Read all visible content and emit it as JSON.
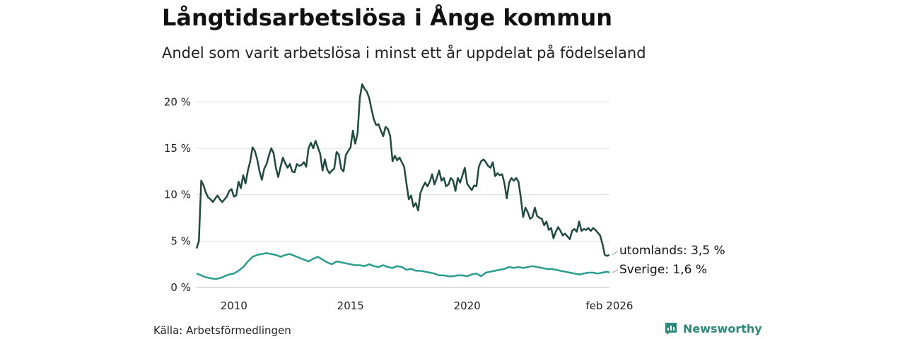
{
  "title": "Långtidsarbetslösa i Ånge kommun",
  "subtitle": "Andel som varit arbetslösa i minst ett år uppdelat på födelseland",
  "source": "Källa: Arbetsförmedlingen",
  "brand": {
    "name": "Newsworthy",
    "icon": "newsworthy-logo-icon"
  },
  "colors": {
    "utomlands": "#1f4a3d",
    "sverige": "#2a9d8f",
    "grid": "#dddddd",
    "brand": "#2d8a79"
  },
  "chart_data": {
    "type": "line",
    "title": "Långtidsarbetslösa i Ånge kommun",
    "xlabel": "",
    "ylabel": "",
    "xlim": [
      2008.4,
      2026.1
    ],
    "ylim": [
      0,
      22
    ],
    "y_ticks": [
      0,
      5,
      10,
      15,
      20
    ],
    "y_tick_labels": [
      "0 %",
      "5 %",
      "10 %",
      "15 %",
      "20 %"
    ],
    "x_ticks": [
      2010,
      2015,
      2020,
      2026.1
    ],
    "x_tick_labels": [
      "2010",
      "2015",
      "2020",
      "feb 2026"
    ],
    "grid": true,
    "legend": "end-of-line labels",
    "series": [
      {
        "name": "utomlands",
        "end_label": "utomlands: 3,5 %",
        "points": [
          [
            2008.4,
            4.2
          ],
          [
            2008.5,
            5.0
          ],
          [
            2008.6,
            11.5
          ],
          [
            2008.7,
            11.0
          ],
          [
            2008.8,
            10.2
          ],
          [
            2008.9,
            9.7
          ],
          [
            2009.0,
            9.5
          ],
          [
            2009.1,
            9.2
          ],
          [
            2009.2,
            9.6
          ],
          [
            2009.3,
            9.9
          ],
          [
            2009.4,
            9.5
          ],
          [
            2009.5,
            9.2
          ],
          [
            2009.6,
            9.5
          ],
          [
            2009.7,
            9.8
          ],
          [
            2009.8,
            10.4
          ],
          [
            2009.9,
            10.6
          ],
          [
            2010.0,
            9.8
          ],
          [
            2010.1,
            9.9
          ],
          [
            2010.2,
            11.4
          ],
          [
            2010.3,
            10.7
          ],
          [
            2010.4,
            12.1
          ],
          [
            2010.5,
            11.2
          ],
          [
            2010.6,
            12.6
          ],
          [
            2010.7,
            13.6
          ],
          [
            2010.8,
            15.1
          ],
          [
            2010.9,
            14.7
          ],
          [
            2011.0,
            13.8
          ],
          [
            2011.1,
            12.5
          ],
          [
            2011.2,
            11.6
          ],
          [
            2011.3,
            12.8
          ],
          [
            2011.4,
            13.3
          ],
          [
            2011.5,
            14.2
          ],
          [
            2011.6,
            15.0
          ],
          [
            2011.7,
            14.5
          ],
          [
            2011.8,
            12.9
          ],
          [
            2011.9,
            11.9
          ],
          [
            2012.0,
            13.0
          ],
          [
            2012.1,
            14.0
          ],
          [
            2012.2,
            13.4
          ],
          [
            2012.3,
            12.9
          ],
          [
            2012.4,
            13.3
          ],
          [
            2012.5,
            12.5
          ],
          [
            2012.6,
            12.4
          ],
          [
            2012.7,
            13.3
          ],
          [
            2012.8,
            13.1
          ],
          [
            2012.9,
            13.2
          ],
          [
            2013.0,
            13.5
          ],
          [
            2013.1,
            13.0
          ],
          [
            2013.2,
            15.0
          ],
          [
            2013.3,
            15.6
          ],
          [
            2013.4,
            15.0
          ],
          [
            2013.5,
            15.8
          ],
          [
            2013.6,
            15.1
          ],
          [
            2013.7,
            14.4
          ],
          [
            2013.8,
            12.6
          ],
          [
            2013.9,
            13.8
          ],
          [
            2014.0,
            12.7
          ],
          [
            2014.1,
            12.3
          ],
          [
            2014.2,
            12.6
          ],
          [
            2014.3,
            12.8
          ],
          [
            2014.4,
            14.6
          ],
          [
            2014.5,
            14.3
          ],
          [
            2014.6,
            12.8
          ],
          [
            2014.7,
            12.5
          ],
          [
            2014.8,
            14.3
          ],
          [
            2014.9,
            14.7
          ],
          [
            2015.0,
            15.1
          ],
          [
            2015.1,
            16.9
          ],
          [
            2015.2,
            15.5
          ],
          [
            2015.3,
            16.6
          ],
          [
            2015.4,
            20.5
          ],
          [
            2015.5,
            21.9
          ],
          [
            2015.6,
            21.4
          ],
          [
            2015.7,
            21.1
          ],
          [
            2015.8,
            20.4
          ],
          [
            2015.9,
            19.2
          ],
          [
            2016.0,
            18.1
          ],
          [
            2016.1,
            17.5
          ],
          [
            2016.2,
            17.6
          ],
          [
            2016.3,
            16.9
          ],
          [
            2016.4,
            16.3
          ],
          [
            2016.5,
            17.3
          ],
          [
            2016.6,
            17.1
          ],
          [
            2016.7,
            16.3
          ],
          [
            2016.8,
            13.6
          ],
          [
            2016.9,
            14.2
          ],
          [
            2017.0,
            13.7
          ],
          [
            2017.1,
            14.0
          ],
          [
            2017.2,
            13.5
          ],
          [
            2017.3,
            13.0
          ],
          [
            2017.4,
            11.2
          ],
          [
            2017.5,
            9.5
          ],
          [
            2017.6,
            9.9
          ],
          [
            2017.7,
            8.7
          ],
          [
            2017.8,
            9.1
          ],
          [
            2017.9,
            8.3
          ],
          [
            2018.0,
            10.2
          ],
          [
            2018.1,
            10.8
          ],
          [
            2018.2,
            11.3
          ],
          [
            2018.3,
            10.9
          ],
          [
            2018.4,
            11.4
          ],
          [
            2018.5,
            12.2
          ],
          [
            2018.6,
            11.1
          ],
          [
            2018.7,
            11.8
          ],
          [
            2018.8,
            12.6
          ],
          [
            2018.9,
            11.5
          ],
          [
            2019.0,
            11.8
          ],
          [
            2019.1,
            10.9
          ],
          [
            2019.2,
            11.1
          ],
          [
            2019.3,
            11.8
          ],
          [
            2019.4,
            11.5
          ],
          [
            2019.5,
            10.4
          ],
          [
            2019.6,
            11.8
          ],
          [
            2019.7,
            11.3
          ],
          [
            2019.8,
            12.1
          ],
          [
            2019.9,
            12.9
          ],
          [
            2020.0,
            11.2
          ],
          [
            2020.1,
            10.8
          ],
          [
            2020.2,
            10.5
          ],
          [
            2020.3,
            11.0
          ],
          [
            2020.4,
            10.9
          ],
          [
            2020.5,
            13.0
          ],
          [
            2020.6,
            13.6
          ],
          [
            2020.7,
            13.8
          ],
          [
            2020.8,
            13.5
          ],
          [
            2020.9,
            13.1
          ],
          [
            2021.0,
            12.9
          ],
          [
            2021.1,
            13.5
          ],
          [
            2021.2,
            12.0
          ],
          [
            2021.3,
            12.3
          ],
          [
            2021.4,
            12.1
          ],
          [
            2021.5,
            12.2
          ],
          [
            2021.6,
            11.2
          ],
          [
            2021.7,
            9.6
          ],
          [
            2021.8,
            11.3
          ],
          [
            2021.9,
            11.8
          ],
          [
            2022.0,
            11.5
          ],
          [
            2022.1,
            11.8
          ],
          [
            2022.2,
            11.4
          ],
          [
            2022.3,
            9.7
          ],
          [
            2022.4,
            7.6
          ],
          [
            2022.5,
            8.6
          ],
          [
            2022.6,
            8.1
          ],
          [
            2022.7,
            7.4
          ],
          [
            2022.8,
            7.6
          ],
          [
            2022.9,
            8.6
          ],
          [
            2023.0,
            7.7
          ],
          [
            2023.1,
            7.5
          ],
          [
            2023.2,
            7.4
          ],
          [
            2023.3,
            6.7
          ],
          [
            2023.4,
            7.1
          ],
          [
            2023.5,
            6.2
          ],
          [
            2023.6,
            6.4
          ],
          [
            2023.7,
            5.3
          ],
          [
            2023.8,
            6.0
          ],
          [
            2023.9,
            6.5
          ],
          [
            2024.0,
            6.1
          ],
          [
            2024.1,
            5.6
          ],
          [
            2024.2,
            5.8
          ],
          [
            2024.3,
            5.5
          ],
          [
            2024.4,
            5.2
          ],
          [
            2024.5,
            6.1
          ],
          [
            2024.6,
            6.3
          ],
          [
            2024.7,
            6.0
          ],
          [
            2024.8,
            7.1
          ],
          [
            2024.9,
            6.1
          ],
          [
            2025.0,
            6.3
          ],
          [
            2025.1,
            6.2
          ],
          [
            2025.2,
            6.4
          ],
          [
            2025.3,
            6.1
          ],
          [
            2025.4,
            6.4
          ],
          [
            2025.5,
            6.2
          ],
          [
            2025.6,
            5.9
          ],
          [
            2025.7,
            5.6
          ],
          [
            2025.8,
            4.7
          ],
          [
            2025.9,
            3.5
          ],
          [
            2026.0,
            3.4
          ],
          [
            2026.1,
            3.5
          ]
        ]
      },
      {
        "name": "Sverige",
        "end_label": "Sverige: 1,6 %",
        "points": [
          [
            2008.4,
            1.5
          ],
          [
            2008.6,
            1.3
          ],
          [
            2008.8,
            1.1
          ],
          [
            2009.0,
            1.0
          ],
          [
            2009.2,
            0.9
          ],
          [
            2009.4,
            1.0
          ],
          [
            2009.6,
            1.2
          ],
          [
            2009.8,
            1.4
          ],
          [
            2010.0,
            1.5
          ],
          [
            2010.2,
            1.8
          ],
          [
            2010.4,
            2.2
          ],
          [
            2010.6,
            2.8
          ],
          [
            2010.8,
            3.3
          ],
          [
            2011.0,
            3.5
          ],
          [
            2011.2,
            3.6
          ],
          [
            2011.4,
            3.7
          ],
          [
            2011.6,
            3.6
          ],
          [
            2011.8,
            3.5
          ],
          [
            2012.0,
            3.3
          ],
          [
            2012.2,
            3.5
          ],
          [
            2012.4,
            3.6
          ],
          [
            2012.6,
            3.4
          ],
          [
            2012.8,
            3.2
          ],
          [
            2013.0,
            3.0
          ],
          [
            2013.2,
            2.8
          ],
          [
            2013.4,
            3.1
          ],
          [
            2013.6,
            3.3
          ],
          [
            2013.8,
            3.0
          ],
          [
            2014.0,
            2.7
          ],
          [
            2014.2,
            2.5
          ],
          [
            2014.4,
            2.8
          ],
          [
            2014.6,
            2.7
          ],
          [
            2014.8,
            2.6
          ],
          [
            2015.0,
            2.5
          ],
          [
            2015.2,
            2.4
          ],
          [
            2015.4,
            2.4
          ],
          [
            2015.6,
            2.3
          ],
          [
            2015.8,
            2.5
          ],
          [
            2016.0,
            2.3
          ],
          [
            2016.2,
            2.2
          ],
          [
            2016.4,
            2.4
          ],
          [
            2016.6,
            2.2
          ],
          [
            2016.8,
            2.1
          ],
          [
            2017.0,
            2.3
          ],
          [
            2017.2,
            2.2
          ],
          [
            2017.4,
            1.9
          ],
          [
            2017.6,
            2.0
          ],
          [
            2017.8,
            1.8
          ],
          [
            2018.0,
            1.8
          ],
          [
            2018.2,
            1.7
          ],
          [
            2018.4,
            1.6
          ],
          [
            2018.6,
            1.5
          ],
          [
            2018.8,
            1.3
          ],
          [
            2019.0,
            1.3
          ],
          [
            2019.2,
            1.2
          ],
          [
            2019.4,
            1.2
          ],
          [
            2019.6,
            1.3
          ],
          [
            2019.8,
            1.3
          ],
          [
            2020.0,
            1.2
          ],
          [
            2020.2,
            1.4
          ],
          [
            2020.4,
            1.5
          ],
          [
            2020.6,
            1.2
          ],
          [
            2020.8,
            1.6
          ],
          [
            2021.0,
            1.7
          ],
          [
            2021.2,
            1.8
          ],
          [
            2021.4,
            1.9
          ],
          [
            2021.6,
            2.0
          ],
          [
            2021.8,
            2.2
          ],
          [
            2022.0,
            2.1
          ],
          [
            2022.2,
            2.2
          ],
          [
            2022.4,
            2.1
          ],
          [
            2022.6,
            2.2
          ],
          [
            2022.8,
            2.3
          ],
          [
            2023.0,
            2.2
          ],
          [
            2023.2,
            2.1
          ],
          [
            2023.4,
            2.0
          ],
          [
            2023.6,
            2.0
          ],
          [
            2023.8,
            1.9
          ],
          [
            2024.0,
            1.8
          ],
          [
            2024.2,
            1.7
          ],
          [
            2024.4,
            1.6
          ],
          [
            2024.6,
            1.5
          ],
          [
            2024.8,
            1.4
          ],
          [
            2025.0,
            1.5
          ],
          [
            2025.2,
            1.6
          ],
          [
            2025.4,
            1.6
          ],
          [
            2025.6,
            1.5
          ],
          [
            2025.8,
            1.6
          ],
          [
            2026.0,
            1.7
          ],
          [
            2026.1,
            1.6
          ]
        ]
      }
    ]
  }
}
